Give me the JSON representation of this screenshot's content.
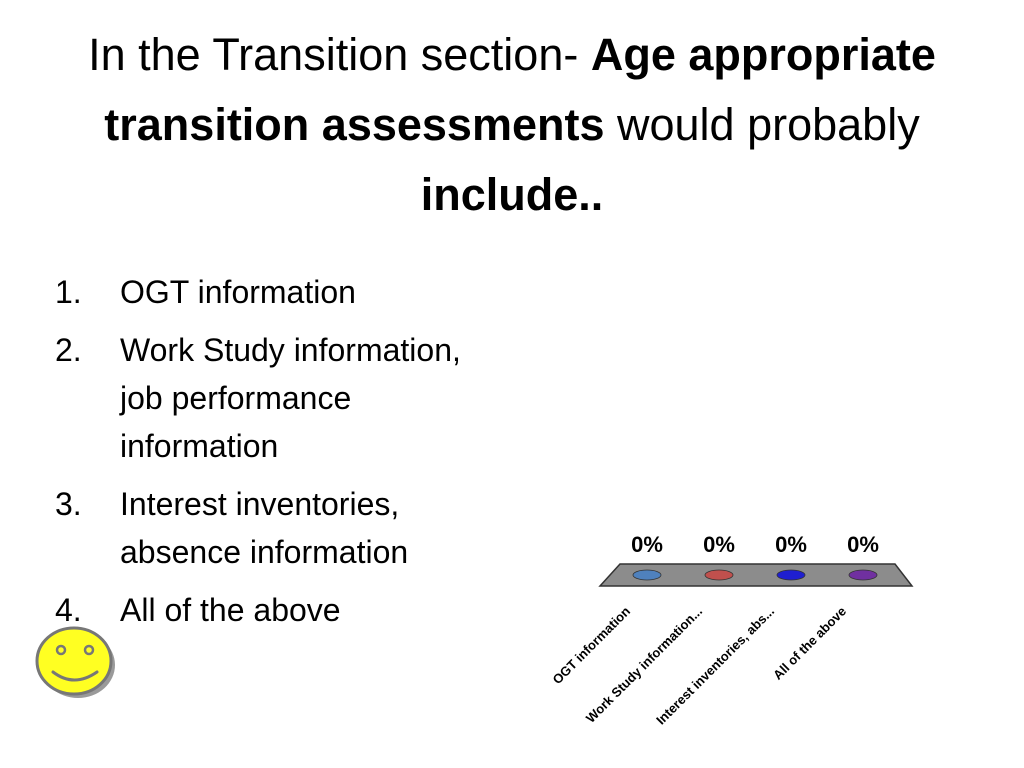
{
  "slide": {
    "title_parts": [
      {
        "text": "In the Transition section- ",
        "bold": false
      },
      {
        "text": "Age appropriate transition assessments",
        "bold": true
      },
      {
        "text": " would probably ",
        "bold": false
      },
      {
        "text": "include..",
        "bold": true
      }
    ],
    "options": [
      {
        "number": "1.",
        "label": "OGT information"
      },
      {
        "number": "2.",
        "label": "Work Study information, job performance information"
      },
      {
        "number": "3.",
        "label": "Interest inventories, absence information"
      },
      {
        "number": "4.",
        "label": "All of the above"
      }
    ],
    "correct_indicator_icon": "smiley-face-icon"
  },
  "chart_data": {
    "type": "bar",
    "categories": [
      "OGT information",
      "Work Study information...",
      "Interest inventories, abs...",
      "All of the above"
    ],
    "values": [
      0,
      0,
      0,
      0
    ],
    "value_labels": [
      "0%",
      "0%",
      "0%",
      "0%"
    ],
    "unit": "%",
    "ylim": [
      0,
      100
    ],
    "grid": false,
    "colors": [
      "#4f81bd",
      "#c0504d",
      "#1f1fd0",
      "#7030a0"
    ],
    "floor_color": "#8c8c8c"
  }
}
